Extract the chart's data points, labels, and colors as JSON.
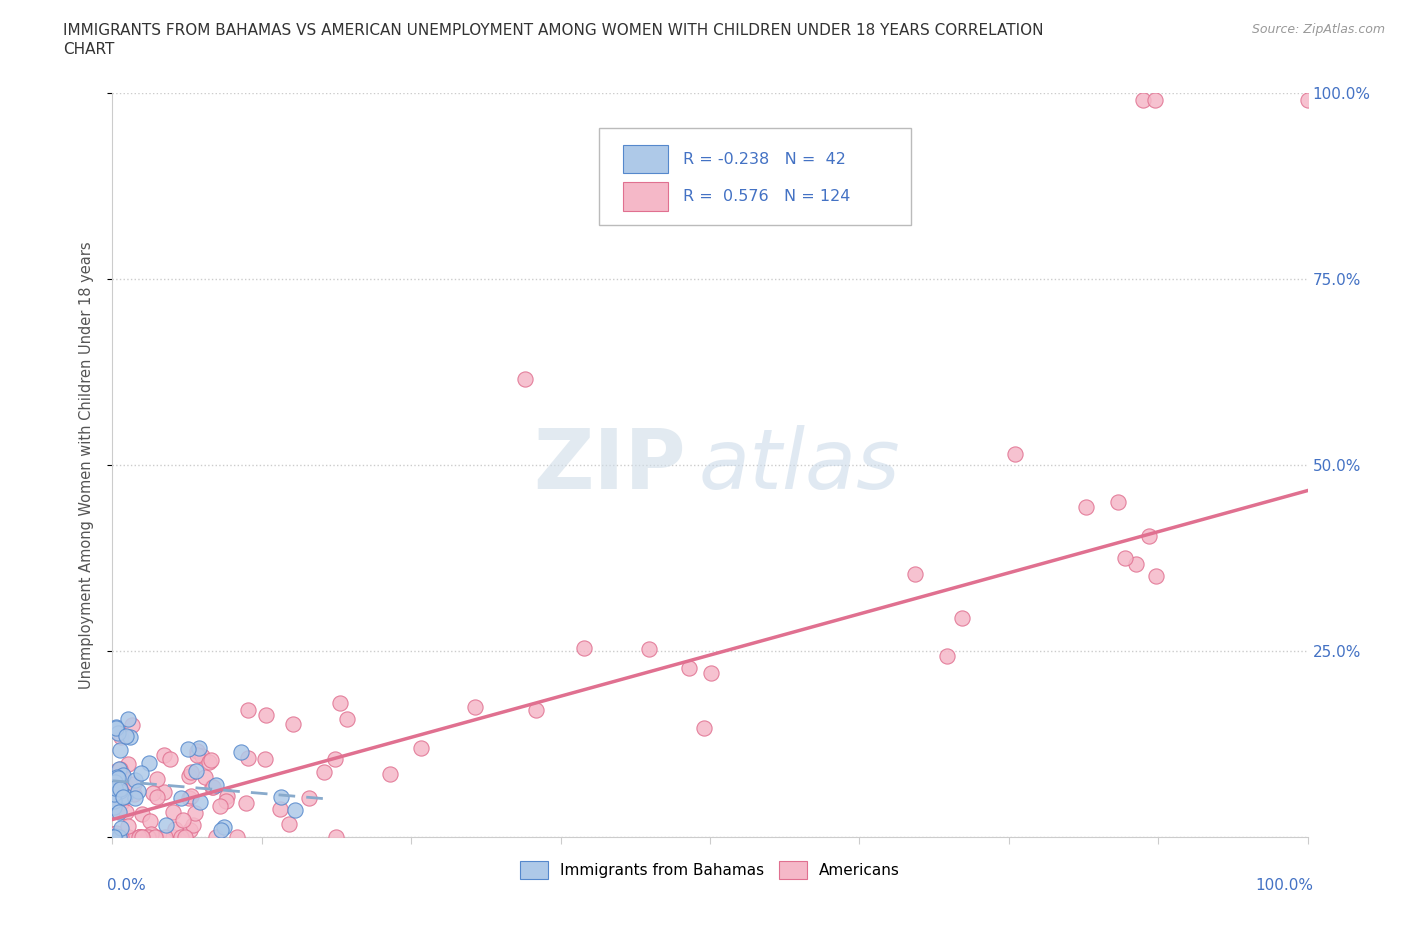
{
  "title_line1": "IMMIGRANTS FROM BAHAMAS VS AMERICAN UNEMPLOYMENT AMONG WOMEN WITH CHILDREN UNDER 18 YEARS CORRELATION",
  "title_line2": "CHART",
  "source": "Source: ZipAtlas.com",
  "ylabel": "Unemployment Among Women with Children Under 18 years",
  "R_blue": -0.238,
  "N_blue": 42,
  "R_pink": 0.576,
  "N_pink": 124,
  "blue_color": "#aec9e8",
  "blue_edge": "#5588cc",
  "pink_color": "#f5b8c8",
  "pink_edge": "#e07090",
  "trend_pink_color": "#e07090",
  "trend_blue_color": "#88aacc",
  "watermark_zip": "ZIP",
  "watermark_atlas": "atlas",
  "axis_color": "#cccccc",
  "tick_label_color": "#4472c4",
  "title_color": "#333333",
  "grid_color": "#cccccc",
  "legend_edge_color": "#bbbbbb"
}
